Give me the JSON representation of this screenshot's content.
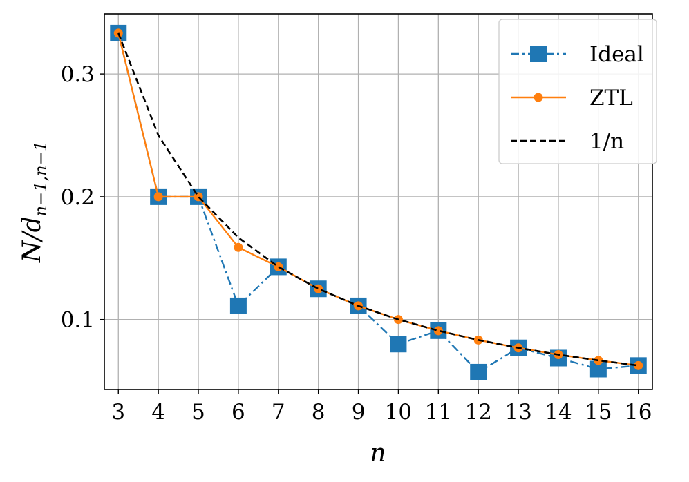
{
  "chart_data": {
    "type": "line",
    "xlabel": "n",
    "ylabel": "N/d_{n-1,n-1}",
    "ylabel_parts": {
      "main": "N/d",
      "sub": "n−1,n−1"
    },
    "x": [
      3,
      4,
      5,
      6,
      7,
      8,
      9,
      10,
      11,
      12,
      13,
      14,
      15,
      16
    ],
    "x_tick_labels": [
      "3",
      "4",
      "5",
      "6",
      "7",
      "8",
      "9",
      "10",
      "11",
      "12",
      "13",
      "14",
      "15",
      "16"
    ],
    "y_ticks": [
      0.1,
      0.2,
      0.3
    ],
    "y_tick_labels": [
      "0.1",
      "0.2",
      "0.3"
    ],
    "xlim": [
      2.65,
      16.35
    ],
    "ylim": [
      0.043,
      0.349
    ],
    "grid": true,
    "legend_position": "top-right",
    "series": [
      {
        "name": "Ideal",
        "color": "#1f77b4",
        "line_style": "dash-dot",
        "marker": "square",
        "values": [
          0.3333,
          0.2,
          0.2,
          0.1111,
          0.1429,
          0.125,
          0.1111,
          0.08,
          0.0909,
          0.0571,
          0.0769,
          0.0686,
          0.0596,
          0.0625
        ]
      },
      {
        "name": "ZTL",
        "color": "#ff7f0e",
        "line_style": "solid",
        "marker": "circle",
        "values": [
          0.3333,
          0.2,
          0.2,
          0.1587,
          0.1429,
          0.125,
          0.1111,
          0.1,
          0.0909,
          0.0833,
          0.0769,
          0.0714,
          0.0667,
          0.0625
        ]
      },
      {
        "name": "1/n",
        "color": "#000000",
        "line_style": "dashed",
        "marker": "none",
        "values": [
          0.3333,
          0.25,
          0.2,
          0.1667,
          0.1429,
          0.125,
          0.1111,
          0.1,
          0.0909,
          0.0833,
          0.0769,
          0.0714,
          0.0667,
          0.0625
        ]
      }
    ]
  }
}
